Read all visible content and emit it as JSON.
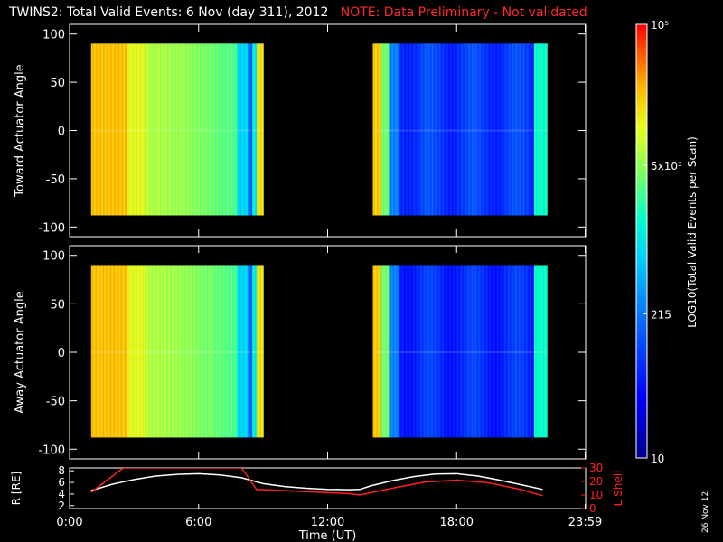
{
  "title": {
    "main": "TWINS2: Total Valid Events:  6 Nov (day 311), 2012",
    "note": "NOTE: Data Preliminary - Not validated",
    "note_color": "#ff2a2a"
  },
  "footer_date": "26 Nov 12",
  "chart_data": [
    {
      "type": "heatmap",
      "id": "toward",
      "ylabel": "Toward Actuator Angle",
      "ylim": [
        -110,
        110
      ],
      "yticks": [
        100,
        50,
        0,
        -50,
        -100
      ],
      "data_y_range": [
        -88,
        90
      ],
      "segments": [
        {
          "start_hour": 1.0,
          "end_hour": 9.0
        },
        {
          "start_hour": 14.1,
          "end_hour": 22.2
        }
      ],
      "note": "Log10 counts vary mainly with time; high (orange) after 1:00 UT, decreasing to green/cyan by 8:00 UT, low (blue) after 14:00 UT"
    },
    {
      "type": "heatmap",
      "id": "away",
      "ylabel": "Away Actuator Angle",
      "ylim": [
        -110,
        110
      ],
      "yticks": [
        100,
        50,
        0,
        -50,
        -100
      ],
      "data_y_range": [
        -88,
        90
      ],
      "segments": [
        {
          "start_hour": 1.0,
          "end_hour": 9.0
        },
        {
          "start_hour": 14.1,
          "end_hour": 22.2
        }
      ]
    },
    {
      "type": "colorbar",
      "label": "LOG10(Total Valid Events per Scan)",
      "tick_labels": [
        "10⁵",
        "5x10³",
        "215",
        "10"
      ],
      "tick_values_log10": [
        5.0,
        3.7,
        2.33,
        1.0
      ]
    },
    {
      "type": "line",
      "id": "orbit",
      "xlabel": "Time (UT)",
      "x_tick_labels": [
        "0:00",
        "6:00",
        "12:00",
        "18:00",
        "23:59"
      ],
      "x_tick_hours": [
        0,
        6,
        12,
        18,
        23.98
      ],
      "xlim": [
        0,
        24
      ],
      "left_axis": {
        "label": "R [RE]",
        "ylim": [
          1.5,
          8.5
        ],
        "ticks": [
          8,
          6,
          4,
          2
        ]
      },
      "right_axis": {
        "label": "L Shell",
        "ylim": [
          0,
          30
        ],
        "ticks": [
          30,
          20,
          10,
          0
        ],
        "color": "#ff2020"
      },
      "series": [
        {
          "name": "R",
          "axis": "left",
          "color": "#ffffff",
          "x": [
            1.0,
            2.0,
            3.0,
            4.0,
            5.0,
            6.0,
            7.0,
            8.0,
            8.5,
            9.0,
            10.0,
            11.0,
            12.0,
            13.0,
            13.5,
            14.0,
            15.0,
            16.0,
            17.0,
            18.0,
            19.0,
            20.0,
            21.0,
            22.0
          ],
          "y": [
            4.6,
            5.7,
            6.5,
            7.1,
            7.4,
            7.5,
            7.3,
            6.8,
            6.3,
            5.8,
            5.3,
            5.0,
            4.8,
            4.75,
            4.8,
            5.4,
            6.3,
            7.0,
            7.45,
            7.5,
            7.1,
            6.4,
            5.6,
            4.8
          ]
        },
        {
          "name": "L Shell",
          "axis": "right",
          "color": "#ff2020",
          "x": [
            1.0,
            2.5,
            8.0,
            8.7,
            9.0,
            11.0,
            13.0,
            13.5,
            15.0,
            16.5,
            18.0,
            19.5,
            21.0,
            22.0
          ],
          "y": [
            12,
            30,
            30,
            14,
            14,
            12.5,
            11,
            10,
            15,
            19.5,
            21,
            19,
            14,
            9.5
          ]
        }
      ]
    }
  ]
}
